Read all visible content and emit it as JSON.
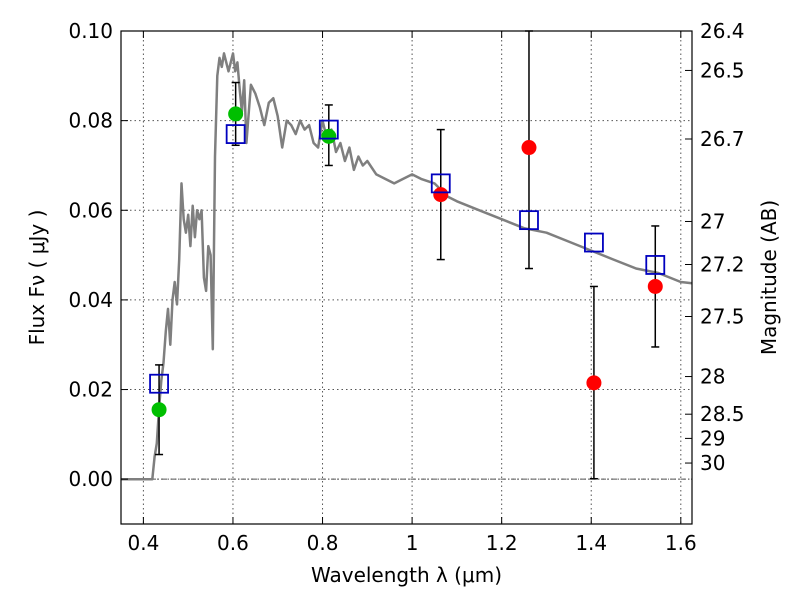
{
  "chart_data": {
    "type": "scatter",
    "xlabel": "Wavelength  λ (μm)",
    "ylabel": "Flux  Fν  ( μJy )",
    "y2label": "Magnitude (AB)",
    "xlim": [
      0.35,
      1.625
    ],
    "ylim": [
      -0.01,
      0.1
    ],
    "x_ticks": [
      0.4,
      0.6,
      0.8,
      1.0,
      1.2,
      1.4,
      1.6
    ],
    "x_tick_labels": [
      "0.4",
      "0.6",
      "0.8",
      "1",
      "1.2",
      "1.4",
      "1.6"
    ],
    "y_ticks": [
      0.0,
      0.02,
      0.04,
      0.06,
      0.08,
      0.1
    ],
    "y_tick_labels": [
      "0.00",
      "0.02",
      "0.04",
      "0.06",
      "0.08",
      "0.10"
    ],
    "y2_ticks": [
      {
        "label": "26.4",
        "flux": 0.1
      },
      {
        "label": "26.5",
        "flux": 0.0912
      },
      {
        "label": "26.7",
        "flux": 0.0759
      },
      {
        "label": "27",
        "flux": 0.0575
      },
      {
        "label": "27.2",
        "flux": 0.0479
      },
      {
        "label": "27.5",
        "flux": 0.0363
      },
      {
        "label": "28",
        "flux": 0.0229
      },
      {
        "label": "28.5",
        "flux": 0.0145
      },
      {
        "label": "29",
        "flux": 0.0091
      },
      {
        "label": "30",
        "flux": 0.0036
      }
    ],
    "grid": true,
    "colors": {
      "model": "#7f7f7f",
      "green": "#00bf00",
      "red": "#ff0000",
      "blue": "#0000bf",
      "errorbar": "#000000"
    },
    "model_spectrum": {
      "x": [
        0.35,
        0.38,
        0.4,
        0.41,
        0.415,
        0.42,
        0.425,
        0.43,
        0.435,
        0.44,
        0.445,
        0.45,
        0.455,
        0.46,
        0.465,
        0.47,
        0.475,
        0.48,
        0.485,
        0.49,
        0.495,
        0.5,
        0.505,
        0.51,
        0.515,
        0.52,
        0.525,
        0.53,
        0.535,
        0.54,
        0.545,
        0.55,
        0.555,
        0.56,
        0.565,
        0.57,
        0.575,
        0.58,
        0.59,
        0.6,
        0.605,
        0.61,
        0.615,
        0.62,
        0.625,
        0.63,
        0.64,
        0.65,
        0.66,
        0.67,
        0.68,
        0.69,
        0.7,
        0.71,
        0.72,
        0.73,
        0.74,
        0.75,
        0.76,
        0.77,
        0.78,
        0.79,
        0.8,
        0.81,
        0.82,
        0.83,
        0.84,
        0.85,
        0.86,
        0.87,
        0.88,
        0.89,
        0.9,
        0.92,
        0.94,
        0.96,
        0.98,
        1.0,
        1.02,
        1.05,
        1.08,
        1.1,
        1.15,
        1.2,
        1.25,
        1.3,
        1.35,
        1.4,
        1.45,
        1.5,
        1.55,
        1.6,
        1.625
      ],
      "y": [
        0.0,
        0.0,
        0.0,
        0.0,
        0.0,
        0.0,
        0.005,
        0.008,
        0.016,
        0.022,
        0.026,
        0.033,
        0.038,
        0.03,
        0.04,
        0.044,
        0.039,
        0.049,
        0.066,
        0.058,
        0.055,
        0.059,
        0.052,
        0.061,
        0.054,
        0.06,
        0.058,
        0.06,
        0.045,
        0.042,
        0.052,
        0.05,
        0.029,
        0.072,
        0.09,
        0.094,
        0.092,
        0.095,
        0.091,
        0.095,
        0.091,
        0.093,
        0.087,
        0.082,
        0.089,
        0.075,
        0.088,
        0.086,
        0.083,
        0.079,
        0.084,
        0.085,
        0.081,
        0.074,
        0.08,
        0.079,
        0.077,
        0.08,
        0.078,
        0.079,
        0.075,
        0.074,
        0.08,
        0.076,
        0.078,
        0.073,
        0.075,
        0.071,
        0.074,
        0.069,
        0.072,
        0.07,
        0.071,
        0.068,
        0.067,
        0.066,
        0.067,
        0.068,
        0.067,
        0.066,
        0.063,
        0.062,
        0.06,
        0.058,
        0.056,
        0.055,
        0.053,
        0.051,
        0.049,
        0.047,
        0.046,
        0.044,
        0.0437
      ]
    },
    "green_points": [
      {
        "x": 0.435,
        "y": 0.0155
      },
      {
        "x": 0.606,
        "y": 0.0815
      },
      {
        "x": 0.814,
        "y": 0.0765
      }
    ],
    "red_points": [
      {
        "x": 1.064,
        "y": 0.0635
      },
      {
        "x": 1.261,
        "y": 0.074
      },
      {
        "x": 1.406,
        "y": 0.0215
      },
      {
        "x": 1.543,
        "y": 0.043
      }
    ],
    "blue_squares": [
      {
        "x": 0.435,
        "y": 0.0213
      },
      {
        "x": 0.606,
        "y": 0.077
      },
      {
        "x": 0.814,
        "y": 0.078
      },
      {
        "x": 1.064,
        "y": 0.066
      },
      {
        "x": 1.261,
        "y": 0.0578
      },
      {
        "x": 1.406,
        "y": 0.0528
      },
      {
        "x": 1.543,
        "y": 0.0478
      }
    ],
    "error_bars": [
      {
        "x": 0.435,
        "low": 0.0055,
        "high": 0.0255
      },
      {
        "x": 0.606,
        "low": 0.0745,
        "high": 0.0885
      },
      {
        "x": 0.814,
        "low": 0.07,
        "high": 0.0835
      },
      {
        "x": 1.064,
        "low": 0.049,
        "high": 0.078
      },
      {
        "x": 1.261,
        "low": 0.047,
        "high": 0.1
      },
      {
        "x": 1.406,
        "low": 0.0001,
        "high": 0.043
      },
      {
        "x": 1.543,
        "low": 0.0295,
        "high": 0.0565
      }
    ]
  }
}
